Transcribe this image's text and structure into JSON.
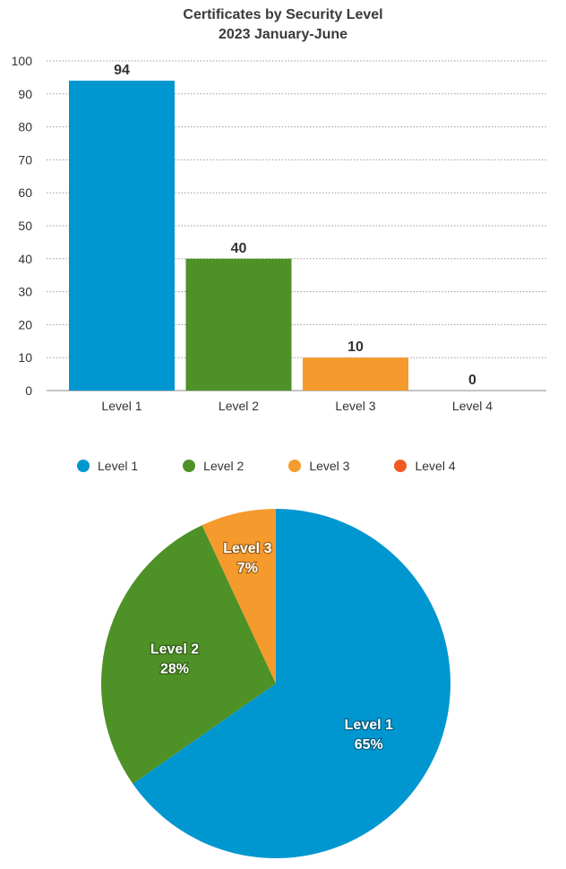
{
  "title_line1": "Certificates by Security Level",
  "title_line2": "2023 January-June",
  "chart_data": [
    {
      "type": "bar",
      "categories": [
        "Level 1",
        "Level 2",
        "Level 3",
        "Level 4"
      ],
      "values": [
        94,
        40,
        10,
        0
      ],
      "data_labels": [
        "94",
        "40",
        "10",
        "0"
      ],
      "colors": [
        "#0097D1",
        "#4E9126",
        "#F59A2C",
        "#F15A22"
      ],
      "ylim": [
        0,
        100
      ],
      "yticks": [
        0,
        10,
        20,
        30,
        40,
        50,
        60,
        70,
        80,
        90,
        100
      ],
      "grid": true
    },
    {
      "type": "pie",
      "categories": [
        "Level 1",
        "Level 2",
        "Level 3",
        "Level 4"
      ],
      "values": [
        94,
        40,
        10,
        0
      ],
      "slice_labels": [
        {
          "name": "Level 1",
          "pct": "65%"
        },
        {
          "name": "Level 2",
          "pct": "28%"
        },
        {
          "name": "Level 3",
          "pct": "7%"
        }
      ],
      "colors": [
        "#0097D1",
        "#4E9126",
        "#F59A2C",
        "#F15A22"
      ],
      "legend_position": "top"
    }
  ],
  "legend": [
    {
      "label": "Level 1",
      "color": "#0097D1"
    },
    {
      "label": "Level 2",
      "color": "#4E9126"
    },
    {
      "label": "Level 3",
      "color": "#F59A2C"
    },
    {
      "label": "Level 4",
      "color": "#F15A22"
    }
  ]
}
